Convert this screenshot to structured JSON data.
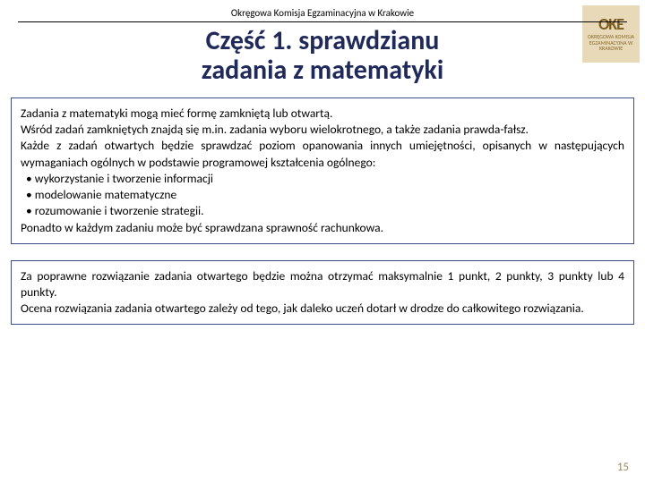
{
  "header": {
    "org_name": "Okręgowa Komisja Egzaminacyjna w Krakowie",
    "title_line1": "Część 1. sprawdzianu",
    "title_line2": "zadania z matematyki",
    "logo_abbrev": "OKE",
    "logo_sub": "OKRĘGOWA KOMISJA EGZAMINACYJNA W KRAKOWIE"
  },
  "box1": {
    "p1": "Zadania z matematyki mogą mieć formę zamkniętą lub otwartą.",
    "p2": "Wśród zadań zamkniętych znajdą się m.in. zadania wyboru wielokrotnego, a także zadania prawda-fałsz.",
    "p3": "Każde z zadań otwartych będzie sprawdzać poziom opanowania innych umiejętności, opisanych w następujących wymaganiach ogólnych w podstawie programowej kształcenia ogólnego:",
    "bullets": [
      "wykorzystanie i tworzenie informacji",
      "modelowanie matematyczne",
      "rozumowanie i tworzenie strategii."
    ],
    "p4": "Ponadto w każdym zadaniu może być sprawdzana sprawność rachunkowa."
  },
  "box2": {
    "p1": "Za poprawne rozwiązanie zadania otwartego będzie można otrzymać maksymalnie 1 punkt, 2 punkty, 3 punkty lub 4 punkty.",
    "p2": "Ocena rozwiązania zadania otwartego zależy od tego, jak daleko uczeń dotarł w drodze do całkowitego rozwiązania."
  },
  "page_number": "15",
  "colors": {
    "title_color": "#1f2a5a",
    "box_border": "#3b4a8a",
    "page_num_color": "#9a8b6a",
    "logo_bg": "#e8d9b8"
  }
}
